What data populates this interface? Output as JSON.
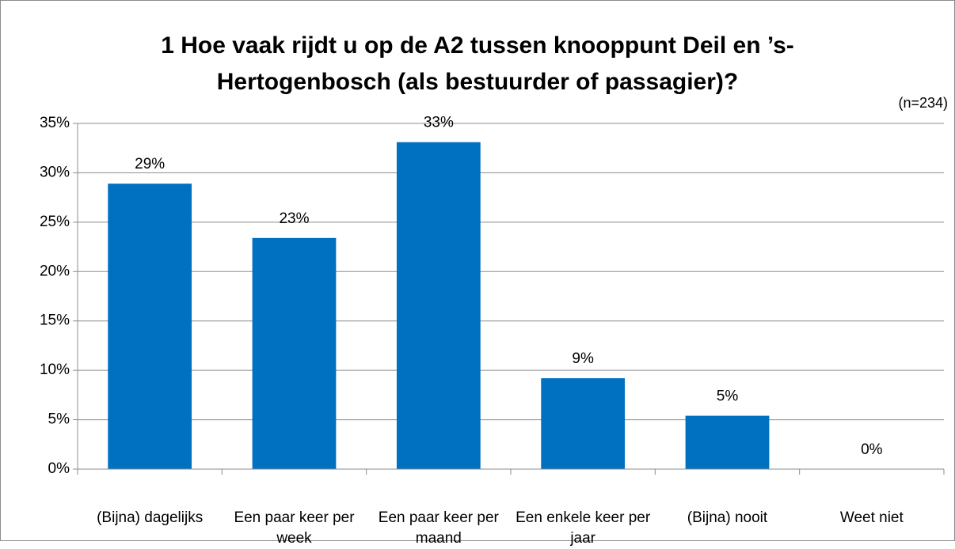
{
  "chart_data": {
    "type": "bar",
    "title": [
      "1 Hoe vaak rijdt u op de A2 tussen knooppunt Deil en ’s-",
      "Hertogenbosch (als bestuurder of passagier)?"
    ],
    "subtitle": "(n=234)",
    "categories": [
      "(Bijna) dagelijks",
      "Een paar keer per week",
      "Een paar keer per maand",
      "Een enkele keer per jaar",
      "(Bijna) nooit",
      "Weet niet"
    ],
    "values": [
      28.9,
      23.4,
      33.1,
      9.2,
      5.4,
      0
    ],
    "value_labels": [
      "29%",
      "23%",
      "33%",
      "9%",
      "5%",
      "0%"
    ],
    "color": "#0070c0",
    "ylim": [
      0,
      35
    ],
    "yticks": [
      {
        "value": 0,
        "label": "0%"
      },
      {
        "value": 5,
        "label": "5%"
      },
      {
        "value": 10,
        "label": "10%"
      },
      {
        "value": 15,
        "label": "15%"
      },
      {
        "value": 20,
        "label": "20%"
      },
      {
        "value": 25,
        "label": "25%"
      },
      {
        "value": 30,
        "label": "30%"
      },
      {
        "value": 35,
        "label": "35%"
      }
    ],
    "grid": true
  }
}
